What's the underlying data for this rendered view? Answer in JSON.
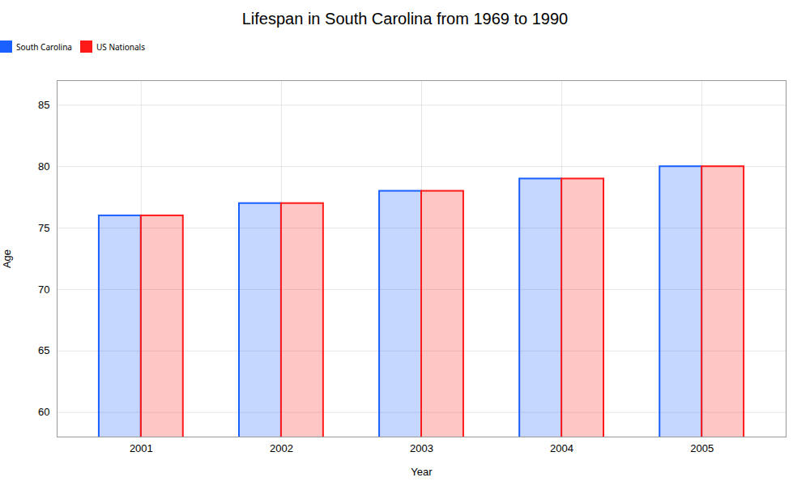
{
  "chart_data": {
    "type": "bar",
    "title": "Lifespan in South Carolina from 1969 to 1990",
    "xlabel": "Year",
    "ylabel": "Age",
    "categories": [
      "2001",
      "2002",
      "2003",
      "2004",
      "2005"
    ],
    "series": [
      {
        "name": "South Carolina",
        "color": "#1a5fff",
        "values": [
          76,
          77,
          78,
          79,
          80
        ]
      },
      {
        "name": "US Nationals",
        "color": "#ff1a1a",
        "values": [
          76,
          77,
          78,
          79,
          80
        ]
      }
    ],
    "ylim": [
      58,
      87
    ],
    "yticks": [
      60,
      65,
      70,
      75,
      80,
      85
    ],
    "grid": true,
    "legend": "top"
  }
}
